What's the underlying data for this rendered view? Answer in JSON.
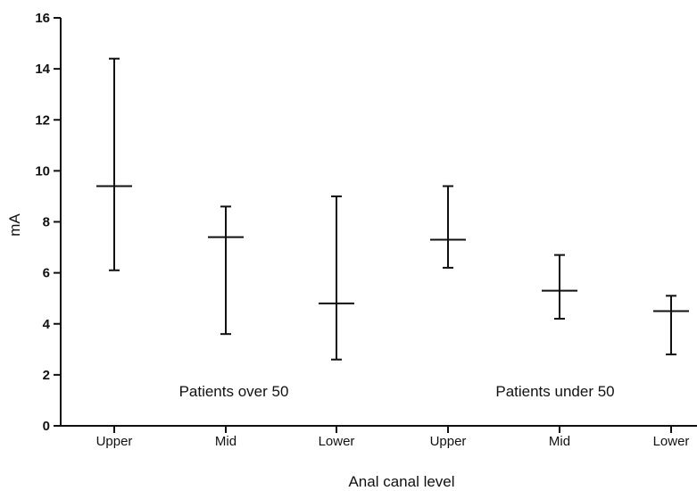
{
  "chart_data": {
    "type": "error_bar",
    "title": "",
    "xlabel": "Anal canal level",
    "ylabel": "mA",
    "ylim": [
      0,
      16
    ],
    "yticks": [
      0,
      2,
      4,
      6,
      8,
      10,
      12,
      14,
      16
    ],
    "grid": false,
    "groups": [
      {
        "label": "Patients over 50",
        "points": [
          {
            "category": "Upper",
            "center": 9.4,
            "low": 6.1,
            "high": 14.4
          },
          {
            "category": "Mid",
            "center": 7.4,
            "low": 3.6,
            "high": 8.6
          },
          {
            "category": "Lower",
            "center": 4.8,
            "low": 2.6,
            "high": 9.0
          }
        ]
      },
      {
        "label": "Patients under 50",
        "points": [
          {
            "category": "Upper",
            "center": 7.3,
            "low": 6.2,
            "high": 9.4
          },
          {
            "category": "Mid",
            "center": 5.3,
            "low": 4.2,
            "high": 6.7
          },
          {
            "category": "Lower",
            "center": 4.5,
            "low": 2.8,
            "high": 5.1
          }
        ]
      }
    ]
  }
}
